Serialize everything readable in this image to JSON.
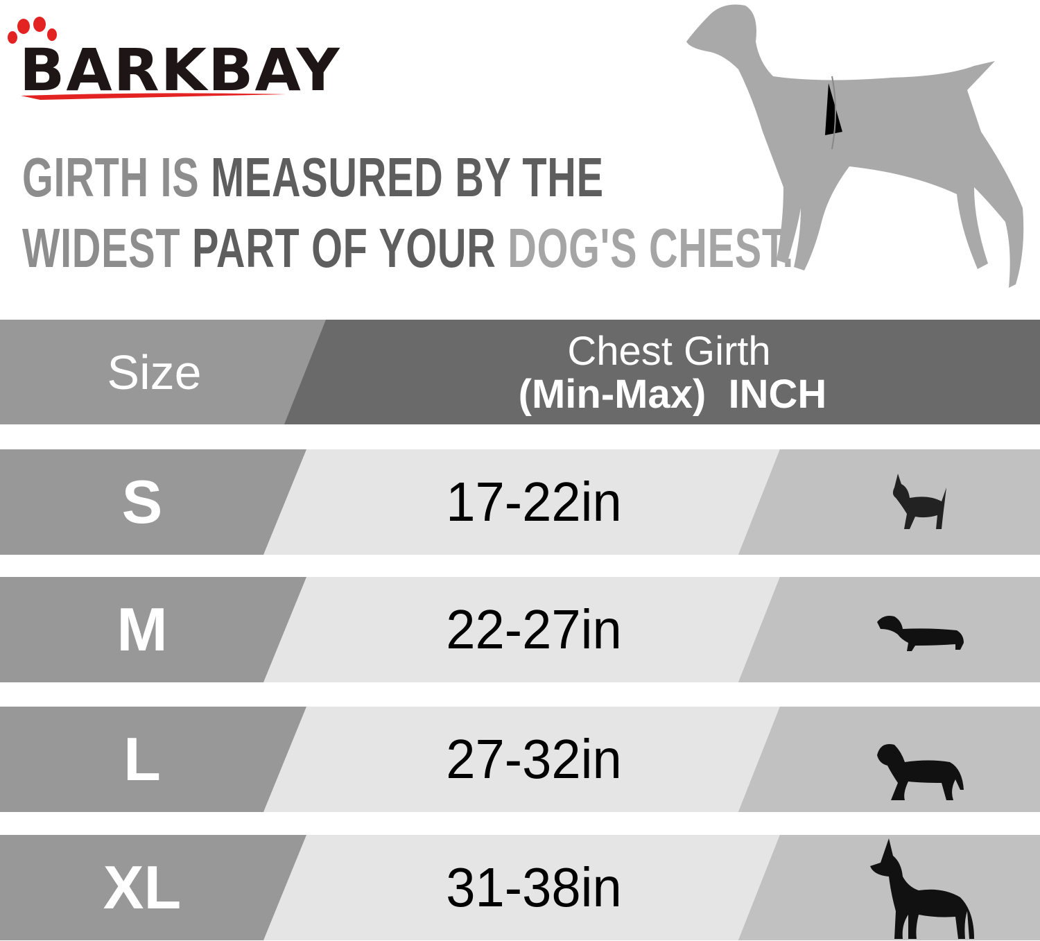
{
  "brand": {
    "name": "BARKBAY",
    "accent": "#e32222"
  },
  "headline": {
    "line1": [
      "GIRTH IS",
      "MEASURED BY THE"
    ],
    "line2": [
      "WIDEST",
      "PART OF YOUR",
      "DOG'S CHEST."
    ]
  },
  "table": {
    "header": {
      "size": "Size",
      "girth_line1": "Chest Girth",
      "girth_line2": "(Min-Max)  INCH"
    },
    "rows": [
      {
        "size": "S",
        "girth": "17-22in",
        "icon": "chihuahua-icon"
      },
      {
        "size": "M",
        "girth": "22-27in",
        "icon": "dachshund-icon"
      },
      {
        "size": "L",
        "girth": "27-32in",
        "icon": "labrador-icon"
      },
      {
        "size": "XL",
        "girth": "31-38in",
        "icon": "great-dane-icon"
      }
    ]
  },
  "colors": {
    "header_left": "#999899",
    "header_right": "#6b6a6b",
    "row_left": "#999899",
    "row_mid": "#e6e5e6",
    "row_right": "#c2c1c2"
  }
}
